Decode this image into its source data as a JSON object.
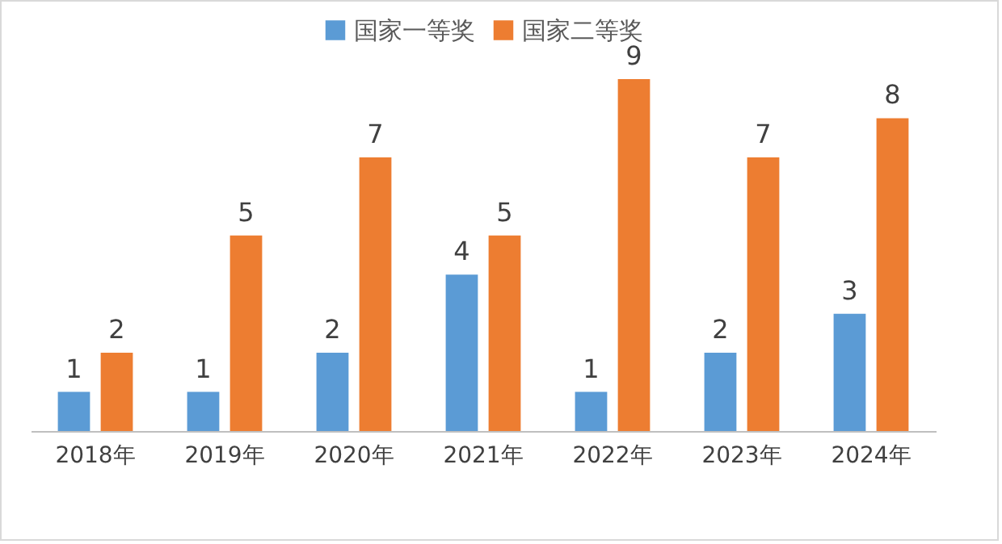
{
  "chart_data": {
    "type": "bar",
    "categories": [
      "2018年",
      "2019年",
      "2020年",
      "2021年",
      "2022年",
      "2023年",
      "2024年"
    ],
    "series": [
      {
        "name": "国家一等奖",
        "color": "#5b9bd5",
        "values": [
          1,
          1,
          2,
          4,
          1,
          2,
          3
        ]
      },
      {
        "name": "国家二等奖",
        "color": "#ed7d31",
        "values": [
          2,
          5,
          7,
          5,
          9,
          7,
          8
        ]
      }
    ],
    "data_labels": true,
    "legend": "top"
  }
}
